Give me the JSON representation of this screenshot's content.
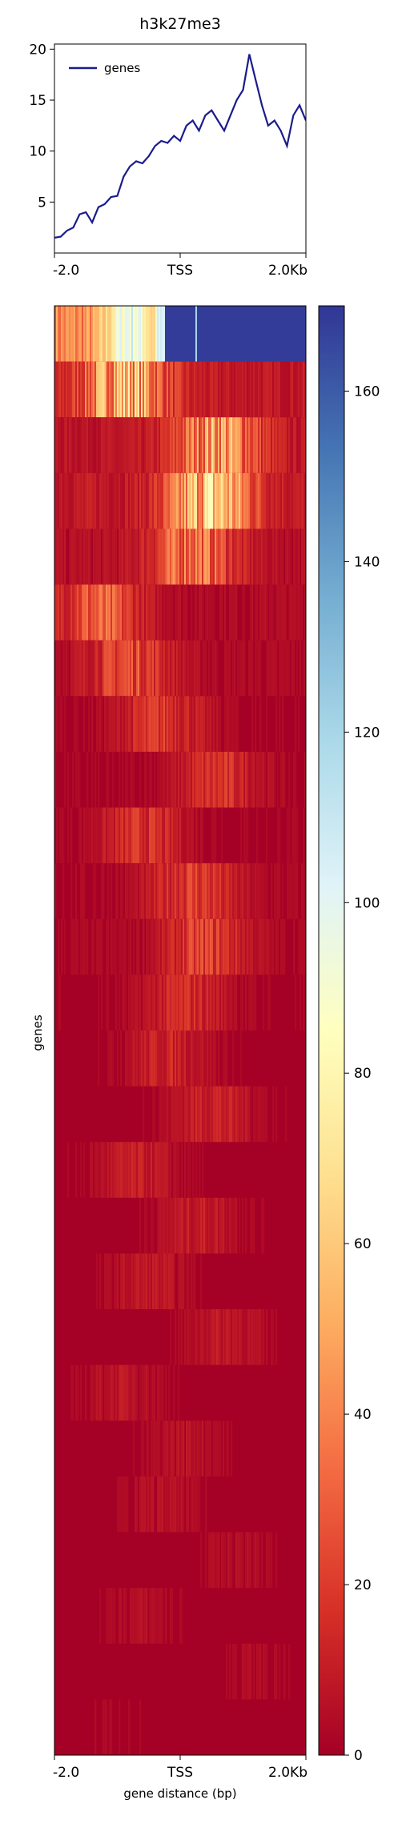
{
  "chart_data": [
    {
      "type": "line",
      "title": "h3k27me3",
      "xlabel": "",
      "ylabel": "",
      "xlim": [
        -2000,
        2000
      ],
      "ylim": [
        0,
        20.5
      ],
      "x_ticks": [
        {
          "value": -2000,
          "label": "-2.0"
        },
        {
          "value": 0,
          "label": "TSS"
        },
        {
          "value": 2000,
          "label": "2.0Kb"
        }
      ],
      "y_ticks": [
        5,
        10,
        15,
        20
      ],
      "legend": {
        "position": "upper-left"
      },
      "grid": false,
      "series": [
        {
          "name": "genes",
          "color": "#1b1b8c",
          "x": [
            -2000,
            -1900,
            -1800,
            -1700,
            -1600,
            -1500,
            -1400,
            -1300,
            -1200,
            -1100,
            -1000,
            -900,
            -800,
            -700,
            -600,
            -500,
            -400,
            -300,
            -200,
            -100,
            0,
            100,
            200,
            300,
            400,
            500,
            600,
            700,
            800,
            900,
            1000,
            1100,
            1200,
            1300,
            1400,
            1500,
            1600,
            1700,
            1800,
            1900,
            2000
          ],
          "y": [
            1.5,
            1.6,
            2.2,
            2.5,
            3.8,
            4.0,
            3.0,
            4.5,
            4.8,
            5.5,
            5.6,
            7.5,
            8.5,
            9.0,
            8.8,
            9.5,
            10.5,
            11.0,
            10.8,
            11.5,
            11.0,
            12.5,
            13.0,
            12.0,
            13.5,
            14.0,
            13.0,
            12.0,
            13.5,
            15.0,
            16.0,
            19.5,
            17.0,
            14.5,
            12.5,
            13.0,
            12.0,
            10.5,
            13.5,
            14.5,
            13.0
          ]
        }
      ]
    },
    {
      "type": "heatmap",
      "xlabel": "gene distance (bp)",
      "ylabel": "genes",
      "xlim": [
        -2000,
        2000
      ],
      "x_ticks": [
        {
          "value": -2000,
          "label": "-2.0"
        },
        {
          "value": 0,
          "label": "TSS"
        },
        {
          "value": 2000,
          "label": "2.0Kb"
        }
      ],
      "colormap": "RdYlBu",
      "colormap_stops": [
        "#a50026",
        "#d73027",
        "#f46d43",
        "#fdae61",
        "#fee090",
        "#ffffbf",
        "#e0f3f8",
        "#abd9e9",
        "#74add1",
        "#4575b4",
        "#313695"
      ],
      "color_range": [
        0,
        170
      ],
      "colorbar_ticks": [
        0,
        20,
        40,
        60,
        80,
        100,
        120,
        140,
        160
      ],
      "row_bands": 26,
      "band_profiles": [
        {
          "band": 1,
          "peak_x": -700,
          "peak_value": 165,
          "note_free": true
        },
        {
          "band": 2,
          "peak_x": -900,
          "peak_value": 70
        },
        {
          "band": 3,
          "peak_x": 600,
          "peak_value": 60
        },
        {
          "band": 4,
          "peak_x": 500,
          "peak_value": 75
        },
        {
          "band": 5,
          "peak_x": 200,
          "peak_value": 45
        },
        {
          "band": 6,
          "peak_x": -1300,
          "peak_value": 35
        },
        {
          "band": 7,
          "peak_x": -800,
          "peak_value": 30
        },
        {
          "band": 8,
          "peak_x": -300,
          "peak_value": 22
        },
        {
          "band": 9,
          "peak_x": 600,
          "peak_value": 20
        },
        {
          "band": 10,
          "peak_x": -600,
          "peak_value": 20
        },
        {
          "band": 11,
          "peak_x": 200,
          "peak_value": 25
        },
        {
          "band": 12,
          "peak_x": 400,
          "peak_value": 25
        },
        {
          "band": 13,
          "peak_x": 100,
          "peak_value": 18
        },
        {
          "band": 14,
          "peak_x": -200,
          "peak_value": 15
        },
        {
          "band": 15,
          "peak_x": 500,
          "peak_value": 15
        },
        {
          "band": 16,
          "peak_x": -700,
          "peak_value": 12
        },
        {
          "band": 17,
          "peak_x": 300,
          "peak_value": 12
        },
        {
          "band": 18,
          "peak_x": -500,
          "peak_value": 10
        },
        {
          "band": 19,
          "peak_x": 700,
          "peak_value": 10
        },
        {
          "band": 20,
          "peak_x": -900,
          "peak_value": 9
        },
        {
          "band": 21,
          "peak_x": 100,
          "peak_value": 8
        },
        {
          "band": 22,
          "peak_x": -300,
          "peak_value": 7
        },
        {
          "band": 23,
          "peak_x": 900,
          "peak_value": 6
        },
        {
          "band": 24,
          "peak_x": -600,
          "peak_value": 6
        },
        {
          "band": 25,
          "peak_x": 1200,
          "peak_value": 5
        },
        {
          "band": 26,
          "peak_x": -1100,
          "peak_value": 4
        }
      ]
    }
  ]
}
